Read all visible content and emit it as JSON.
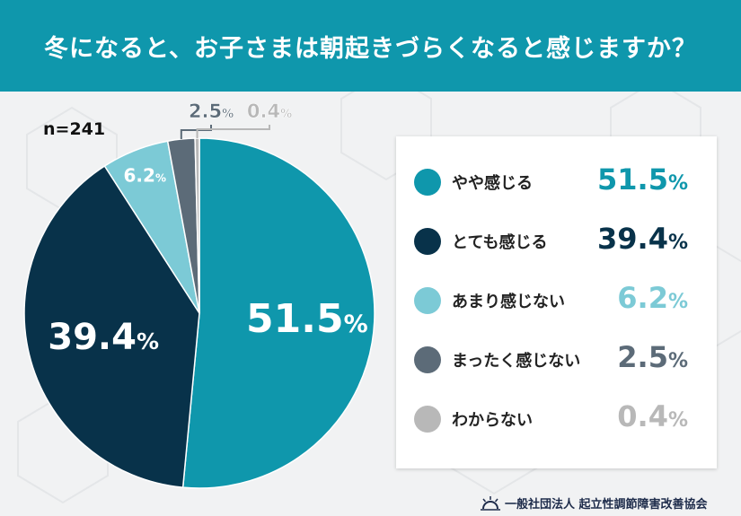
{
  "header": {
    "title": "冬になると、お子さまは朝起きづらくなると感じますか？"
  },
  "sample": {
    "label": "n=241"
  },
  "footer": {
    "org": "一般社団法人 起立性調節障害改善協会"
  },
  "percent_sign": "%",
  "chart_data": {
    "type": "pie",
    "title": "冬になると、お子さまは朝起きづらくなると感じますか？",
    "categories": [
      "やや感じる",
      "とても感じる",
      "あまり感じない",
      "まったく感じない",
      "わからない"
    ],
    "values": [
      51.5,
      39.4,
      6.2,
      2.5,
      0.4
    ],
    "value_labels": [
      "51.5",
      "39.4",
      "6.2",
      "2.5",
      "0.4"
    ],
    "colors": [
      "#0f97ac",
      "#08324a",
      "#7ccad6",
      "#5c6b78",
      "#b8b8b8"
    ],
    "unit": "%",
    "start_angle_deg": 0,
    "direction": "clockwise",
    "legend": "right"
  }
}
